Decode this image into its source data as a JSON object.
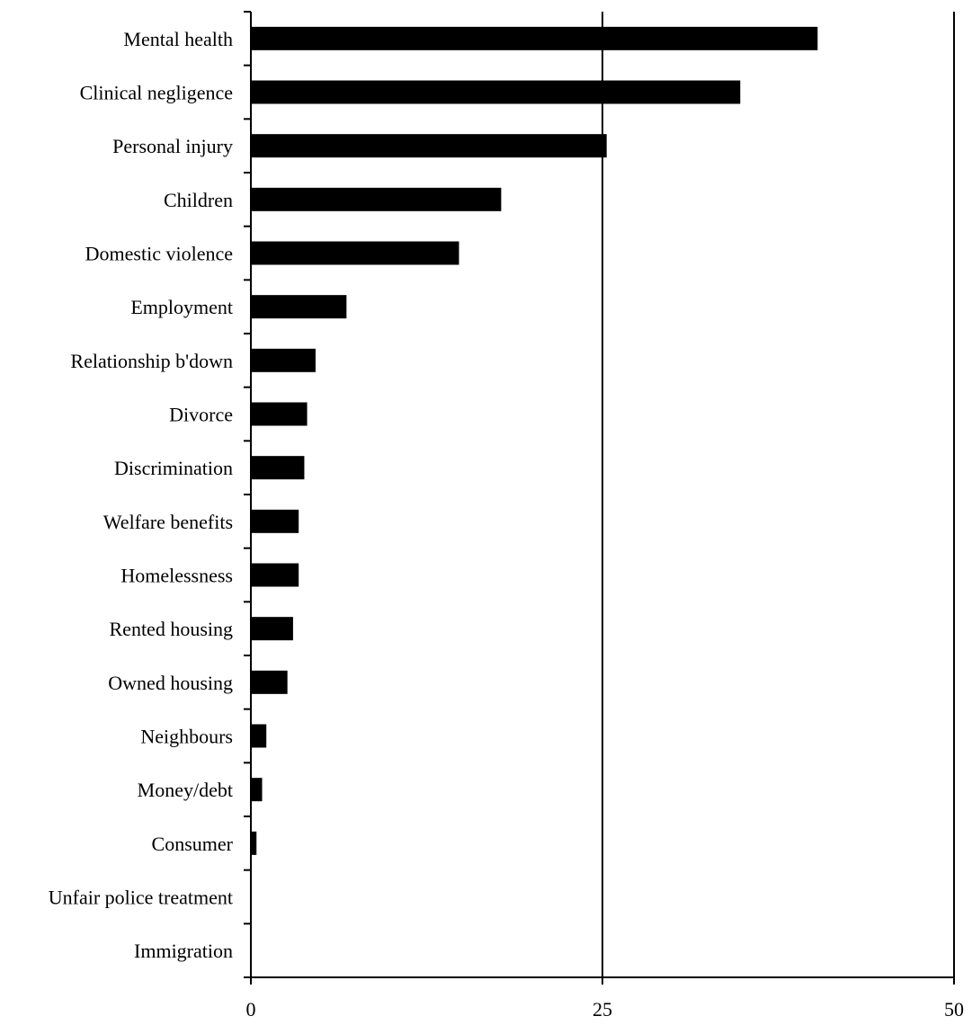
{
  "chart_data": {
    "type": "bar",
    "orientation": "horizontal",
    "categories": [
      "Mental health",
      "Clinical negligence",
      "Personal injury",
      "Children",
      "Domestic violence",
      "Employment",
      "Relationship b'down",
      "Divorce",
      "Discrimination",
      "Welfare benefits",
      "Homelessness",
      "Rented housing",
      "Owned housing",
      "Neighbours",
      "Money/debt",
      "Consumer",
      "Unfair police treatment",
      "Immigration"
    ],
    "values": [
      40.3,
      34.8,
      25.3,
      17.8,
      14.8,
      6.8,
      4.6,
      4.0,
      3.8,
      3.4,
      3.4,
      3.0,
      2.6,
      1.1,
      0.8,
      0.4,
      0,
      0
    ],
    "xlim": [
      0,
      50
    ],
    "xticks": [
      0,
      25,
      50
    ],
    "xtick_labels": [
      "0",
      "25",
      "50"
    ],
    "gridlines_at": [
      25,
      50
    ],
    "bar_color": "#000000",
    "title": "",
    "xlabel": "",
    "ylabel": ""
  }
}
